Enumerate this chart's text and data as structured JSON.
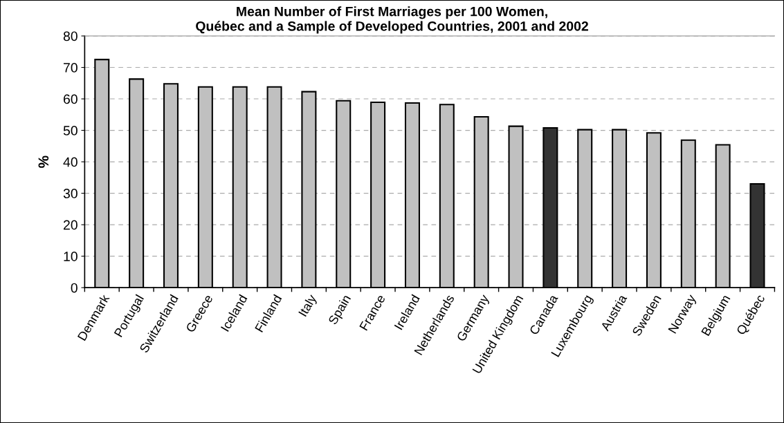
{
  "chart_data": {
    "type": "bar",
    "title": "Mean Number of First Marriages per 100 Women,\nQuébec and a Sample of Developed Countries, 2001 and 2002",
    "ylabel": "%",
    "categories": [
      "Denmark",
      "Portugal",
      "Switzerland",
      "Greece",
      "Iceland",
      "Finland",
      "Italy",
      "Spain",
      "France",
      "Ireland",
      "Netherlands",
      "Germany",
      "United Kingdom",
      "Canada",
      "Luxembourg",
      "Austria",
      "Sweden",
      "Norway",
      "Belgium",
      "Québec"
    ],
    "values": [
      72.5,
      66.3,
      64.8,
      63.8,
      63.8,
      63.8,
      62.3,
      59.4,
      58.9,
      58.7,
      58.2,
      54.3,
      51.3,
      50.8,
      50.2,
      50.2,
      49.2,
      46.9,
      45.4,
      33.0
    ],
    "colors": [
      "#c0c0c0",
      "#c0c0c0",
      "#c0c0c0",
      "#c0c0c0",
      "#c0c0c0",
      "#c0c0c0",
      "#c0c0c0",
      "#c0c0c0",
      "#c0c0c0",
      "#c0c0c0",
      "#c0c0c0",
      "#c0c0c0",
      "#c0c0c0",
      "#333333",
      "#c0c0c0",
      "#c0c0c0",
      "#c0c0c0",
      "#c0c0c0",
      "#c0c0c0",
      "#333333"
    ],
    "ylim": [
      0,
      80
    ],
    "yticks": [
      0,
      10,
      20,
      30,
      40,
      50,
      60,
      70,
      80
    ],
    "grid": "y",
    "legend": false
  }
}
